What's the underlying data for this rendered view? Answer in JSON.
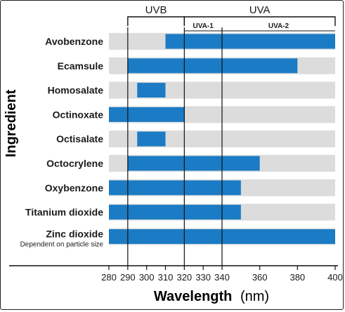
{
  "chart_data": {
    "type": "bar",
    "orientation": "horizontal",
    "xlabel": "Wavelength",
    "xlabel_unit": "(nm)",
    "ylabel": "Ingredient",
    "xlim": [
      280,
      400
    ],
    "xticks": [
      280,
      290,
      300,
      310,
      320,
      330,
      340,
      360,
      380,
      400
    ],
    "grid": "alternating-bands",
    "categories": [
      "Avobenzone",
      "Ecamsule",
      "Homosalate",
      "Octinoxate",
      "Octisalate",
      "Octocrylene",
      "Oxybenzone",
      "Titanium dioxide",
      "Zinc dioxide"
    ],
    "category_notes": [
      "",
      "",
      "",
      "",
      "",
      "",
      "",
      "",
      "Dependent on particle size"
    ],
    "ranges": [
      [
        310,
        400
      ],
      [
        290,
        380
      ],
      [
        295,
        310
      ],
      [
        280,
        320
      ],
      [
        295,
        310
      ],
      [
        290,
        360
      ],
      [
        280,
        350
      ],
      [
        280,
        350
      ],
      [
        280,
        400
      ]
    ],
    "bands": [
      {
        "label": "UVB",
        "start": 290,
        "end": 320,
        "level": "top"
      },
      {
        "label": "UVA",
        "start": 320,
        "end": 400,
        "level": "top"
      },
      {
        "label": "UVA-1",
        "start": 320,
        "end": 340,
        "level": "sub"
      },
      {
        "label": "UVA-2",
        "start": 340,
        "end": 400,
        "level": "sub"
      }
    ],
    "colors": {
      "bar": "#1b7bc4",
      "band": "#dcdcdc",
      "axis": "#111111"
    }
  }
}
